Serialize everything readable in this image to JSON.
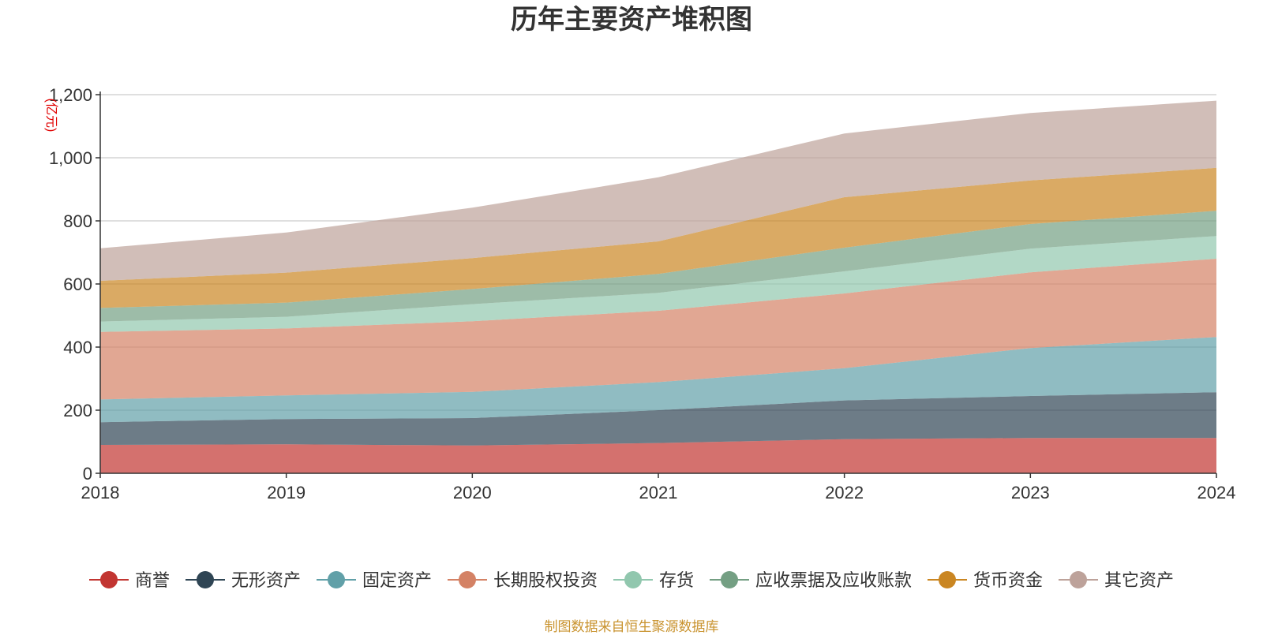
{
  "chart_data": {
    "type": "area",
    "stacked": true,
    "title": "历年主要资产堆积图",
    "ylabel": "(亿元)",
    "xlabel": "",
    "x": [
      "2018",
      "2019",
      "2020",
      "2021",
      "2022",
      "2023",
      "2024"
    ],
    "ylim": [
      0,
      1200
    ],
    "yticks": [
      "0",
      "200",
      "400",
      "600",
      "800",
      "1,000",
      "1,200"
    ],
    "grid": true,
    "legend_position": "bottom",
    "series": [
      {
        "name": "商誉",
        "color": "#c23531",
        "values": [
          90,
          92,
          88,
          96,
          108,
          112,
          112
        ]
      },
      {
        "name": "无形资产",
        "color": "#2f4554",
        "values": [
          72,
          80,
          87,
          104,
          123,
          133,
          145
        ]
      },
      {
        "name": "固定资产",
        "color": "#61a0a8",
        "values": [
          72,
          75,
          83,
          89,
          102,
          152,
          175
        ]
      },
      {
        "name": "长期股权投资",
        "color": "#d48265",
        "values": [
          214,
          212,
          224,
          226,
          237,
          240,
          248
        ]
      },
      {
        "name": "存货",
        "color": "#91c7ae",
        "values": [
          33,
          37,
          54,
          57,
          70,
          75,
          72
        ]
      },
      {
        "name": "应收票据及应收账款",
        "color": "#749f83",
        "values": [
          43,
          45,
          48,
          60,
          75,
          78,
          80
        ]
      },
      {
        "name": "货币资金",
        "color": "#ca8622",
        "values": [
          86,
          95,
          98,
          103,
          160,
          138,
          136
        ]
      },
      {
        "name": "其它资产",
        "color": "#bda29a",
        "values": [
          103,
          127,
          160,
          203,
          202,
          214,
          213
        ]
      }
    ]
  },
  "footer": {
    "source": "制图数据来自恒生聚源数据库"
  }
}
